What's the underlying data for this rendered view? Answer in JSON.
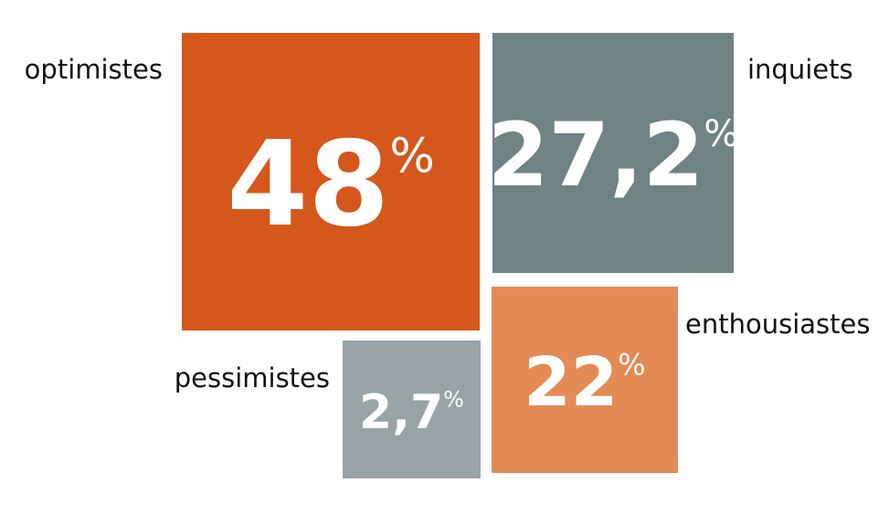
{
  "chart_data": {
    "type": "square",
    "categories": [
      "optimistes",
      "inquiets",
      "enthousiastes",
      "pessimistes"
    ],
    "values": [
      48,
      27.2,
      22,
      2.7
    ],
    "value_labels": [
      "48%",
      "27,2%",
      "22%",
      "2,7%"
    ],
    "colors": [
      "#d5571b",
      "#6f8284",
      "#e38a55",
      "#97a3a6"
    ]
  }
}
